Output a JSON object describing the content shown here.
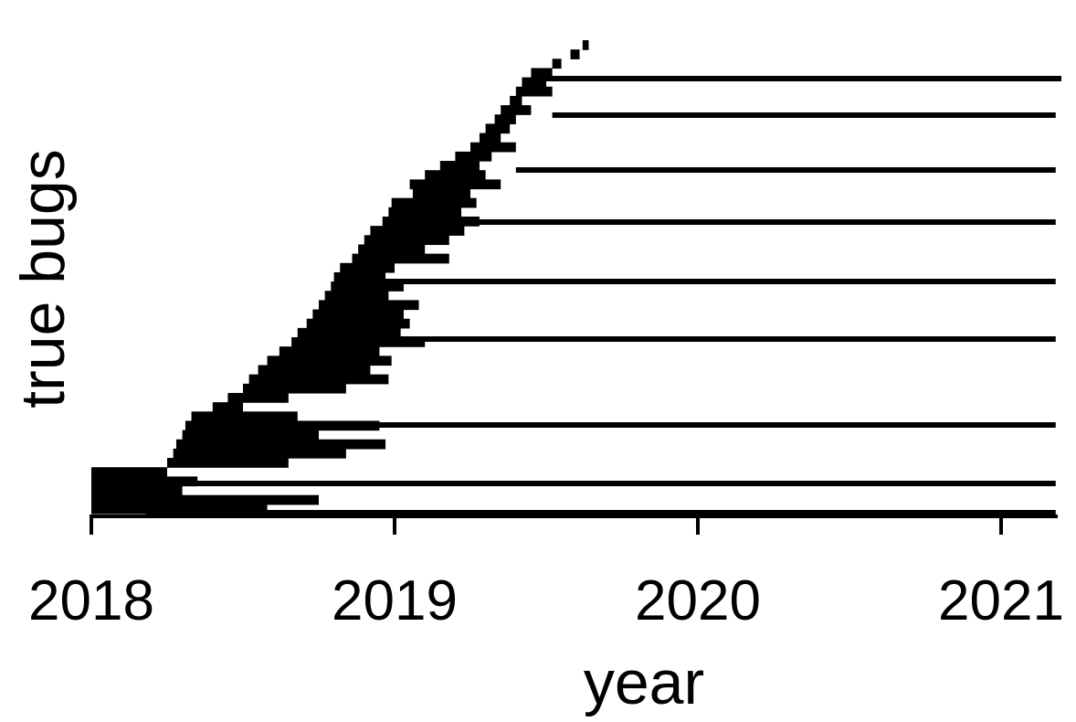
{
  "chart_data": {
    "type": "bar",
    "subtype": "horizontal-timeline",
    "title": "",
    "xlabel": "year",
    "ylabel": "true bugs",
    "xlim": [
      2018.0,
      2021.2
    ],
    "xticks": [
      2018,
      2019,
      2020,
      2021
    ],
    "xtick_labels": [
      "2018",
      "2019",
      "2020",
      "2021"
    ],
    "grid": false,
    "legend": "none",
    "bar_color": "#000000",
    "long_open_bars": [
      {
        "start": 2019.5,
        "end": 2021.2
      },
      {
        "start": 2019.52,
        "end": 2021.18
      },
      {
        "start": 2019.4,
        "end": 2021.18
      },
      {
        "start": 2018.99,
        "end": 2021.18
      },
      {
        "start": 2018.8,
        "end": 2021.18
      },
      {
        "start": 2018.72,
        "end": 2021.18
      },
      {
        "start": 2018.4,
        "end": 2021.18
      },
      {
        "start": 2018.25,
        "end": 2021.18
      },
      {
        "start": 2018.18,
        "end": 2021.18
      }
    ],
    "bug_lifespans": [
      {
        "start": 2019.62,
        "end": 2019.64
      },
      {
        "start": 2019.58,
        "end": 2019.61
      },
      {
        "start": 2019.52,
        "end": 2019.55
      },
      {
        "start": 2019.45,
        "end": 2019.52
      },
      {
        "start": 2019.42,
        "end": 2019.5
      },
      {
        "start": 2019.4,
        "end": 2019.52
      },
      {
        "start": 2019.38,
        "end": 2019.42
      },
      {
        "start": 2019.35,
        "end": 2019.45
      },
      {
        "start": 2019.33,
        "end": 2019.4
      },
      {
        "start": 2019.3,
        "end": 2019.38
      },
      {
        "start": 2019.28,
        "end": 2019.35
      },
      {
        "start": 2019.25,
        "end": 2019.4
      },
      {
        "start": 2019.2,
        "end": 2019.32
      },
      {
        "start": 2019.15,
        "end": 2019.28
      },
      {
        "start": 2019.1,
        "end": 2019.3
      },
      {
        "start": 2019.05,
        "end": 2019.35
      },
      {
        "start": 2019.06,
        "end": 2019.25
      },
      {
        "start": 2018.99,
        "end": 2019.27
      },
      {
        "start": 2018.98,
        "end": 2019.22
      },
      {
        "start": 2018.96,
        "end": 2019.28
      },
      {
        "start": 2018.92,
        "end": 2019.23
      },
      {
        "start": 2018.9,
        "end": 2019.18
      },
      {
        "start": 2018.88,
        "end": 2019.1
      },
      {
        "start": 2018.86,
        "end": 2019.18
      },
      {
        "start": 2018.82,
        "end": 2019.0
      },
      {
        "start": 2018.8,
        "end": 2018.97
      },
      {
        "start": 2018.79,
        "end": 2019.03
      },
      {
        "start": 2018.77,
        "end": 2018.98
      },
      {
        "start": 2018.75,
        "end": 2019.08
      },
      {
        "start": 2018.73,
        "end": 2019.03
      },
      {
        "start": 2018.71,
        "end": 2019.05
      },
      {
        "start": 2018.68,
        "end": 2019.02
      },
      {
        "start": 2018.66,
        "end": 2019.1
      },
      {
        "start": 2018.62,
        "end": 2018.95
      },
      {
        "start": 2018.58,
        "end": 2018.99
      },
      {
        "start": 2018.55,
        "end": 2018.92
      },
      {
        "start": 2018.52,
        "end": 2018.98
      },
      {
        "start": 2018.5,
        "end": 2018.84
      },
      {
        "start": 2018.45,
        "end": 2018.65
      },
      {
        "start": 2018.4,
        "end": 2018.5
      },
      {
        "start": 2018.33,
        "end": 2018.68
      },
      {
        "start": 2018.31,
        "end": 2018.95
      },
      {
        "start": 2018.3,
        "end": 2018.75
      },
      {
        "start": 2018.28,
        "end": 2018.97
      },
      {
        "start": 2018.27,
        "end": 2018.84
      },
      {
        "start": 2018.25,
        "end": 2018.65
      },
      {
        "start": 2018.0,
        "end": 2018.25
      },
      {
        "start": 2018.0,
        "end": 2018.35
      },
      {
        "start": 2018.0,
        "end": 2018.3
      },
      {
        "start": 2018.0,
        "end": 2018.75
      },
      {
        "start": 2018.0,
        "end": 2018.58
      }
    ]
  }
}
